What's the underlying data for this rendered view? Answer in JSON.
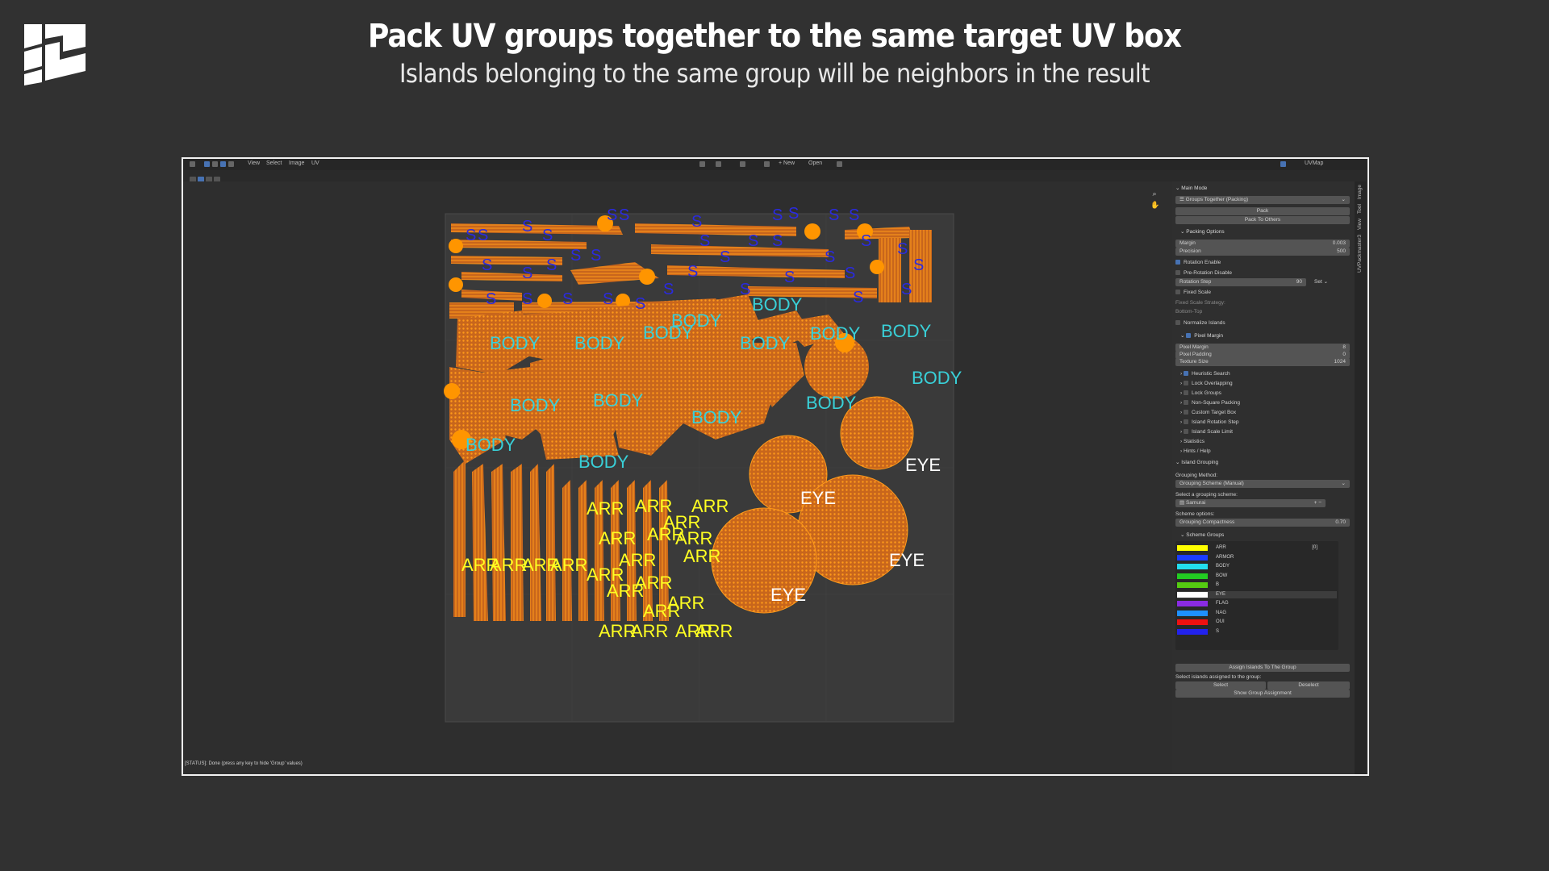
{
  "header": {
    "title": "Pack UV groups together to the same target UV box",
    "subtitle": "Islands belonging to the same group will be neighbors in the result"
  },
  "editor": {
    "menu": [
      "View",
      "Select",
      "Image",
      "UV"
    ],
    "new_label": "+ New",
    "open_label": "Open",
    "uvmap_label": "UVMap",
    "status": "[STATUS]: Done (press any key to hide 'Group' values)"
  },
  "side_tabs": [
    "Image",
    "Tool",
    "View",
    "UVPackmaster3"
  ],
  "panel": {
    "main_mode_label": "Main Mode",
    "mode_value": "Groups Together (Packing)",
    "pack_button": "Pack",
    "pack_to_others_button": "Pack To Others",
    "packing_options": "Packing Options",
    "margin_label": "Margin",
    "margin_value": "0.003",
    "precision_label": "Precision",
    "precision_value": "500",
    "rotation_enable": "Rotation Enable",
    "pre_rotation_disable": "Pre-Rotation Disable",
    "rotation_step_label": "Rotation Step",
    "rotation_step_value": "90",
    "set_label": "Set",
    "fixed_scale": "Fixed Scale",
    "fixed_scale_strategy": "Fixed Scale Strategy:",
    "bottom_top": "Bottom-Top",
    "normalize_islands": "Normalize Islands",
    "pixel_margin_header": "Pixel Margin",
    "pixel_margin_label": "Pixel Margin",
    "pixel_margin_value": "8",
    "pixel_padding_label": "Pixel Padding",
    "pixel_padding_value": "0",
    "texture_size_label": "Texture Size",
    "texture_size_value": "1024",
    "heuristic_search": "Heuristic Search",
    "lock_overlapping": "Lock Overlapping",
    "lock_groups": "Lock Groups",
    "non_square_packing": "Non-Square Packing",
    "custom_target_box": "Custom Target Box",
    "island_rotation_step": "Island Rotation Step",
    "island_scale_limit": "Island Scale Limit",
    "statistics": "Statistics",
    "hints_help": "Hints / Help",
    "island_grouping": "Island Grouping",
    "grouping_method_label": "Grouping Method:",
    "grouping_method_value": "Grouping Scheme (Manual)",
    "select_scheme_label": "Select a grouping scheme:",
    "scheme_value": "Samurai",
    "scheme_options": "Scheme options:",
    "grouping_compactness_label": "Grouping Compactness",
    "grouping_compactness_value": "0.70",
    "scheme_groups": "Scheme Groups",
    "group_id": "[0]",
    "groups": [
      {
        "name": "ARR",
        "color": "#ffff00"
      },
      {
        "name": "ARMOR",
        "color": "#1a3cff"
      },
      {
        "name": "BODY",
        "color": "#22ddee"
      },
      {
        "name": "BOW",
        "color": "#22cc22"
      },
      {
        "name": "B",
        "color": "#55cc11"
      },
      {
        "name": "EYE",
        "color": "#ffffff"
      },
      {
        "name": "FLAG",
        "color": "#8a2be2"
      },
      {
        "name": "NAG",
        "color": "#1e90ff"
      },
      {
        "name": "OUI",
        "color": "#ee1111"
      },
      {
        "name": "S",
        "color": "#2222ee"
      }
    ],
    "assign_button": "Assign Islands To The Group",
    "select_assigned_label": "Select islands assigned to the group:",
    "select_button": "Select",
    "deselect_button": "Deselect",
    "show_assignment_button": "Show Group Assignment"
  },
  "uv_labels": {
    "body": "BODY",
    "eye": "EYE",
    "arr": "ARR",
    "s": "S"
  },
  "colors": {
    "island_fill": "#c8661c",
    "island_stroke": "#ff9a1a",
    "body_text": "#39d0d8",
    "eye_text": "#ffffff",
    "arr_text": "#ffff22",
    "s_text": "#2a2ae0"
  }
}
